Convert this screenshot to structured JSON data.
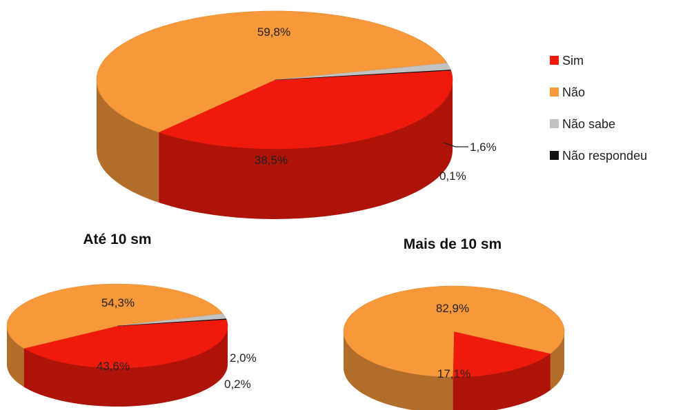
{
  "colors": {
    "Sim": "#f01a0c",
    "Não": "#f7983a",
    "Não sabe": "#c2c2c2",
    "Não respondeu": "#111111"
  },
  "legend": {
    "placement": "right",
    "items": [
      "Sim",
      "Não",
      "Não sabe",
      "Não respondeu"
    ]
  },
  "chart_data": [
    {
      "type": "pie",
      "title": "",
      "categories": [
        "Sim",
        "Não",
        "Não sabe",
        "Não respondeu"
      ],
      "values": [
        38.5,
        59.8,
        1.6,
        0.1
      ],
      "labels": [
        "38,5%",
        "59,8%",
        "1,6%",
        "0,1%"
      ]
    },
    {
      "type": "pie",
      "title": "Até  10 sm",
      "categories": [
        "Sim",
        "Não",
        "Não sabe",
        "Não respondeu"
      ],
      "values": [
        43.6,
        54.3,
        2.0,
        0.2
      ],
      "labels": [
        "43,6%",
        "54,3%",
        "2,0%",
        "0,2%"
      ]
    },
    {
      "type": "pie",
      "title": "Mais de 10 sm",
      "categories": [
        "Sim",
        "Não"
      ],
      "values": [
        17.1,
        82.9
      ],
      "labels": [
        "17,1%",
        "82,9%"
      ]
    }
  ]
}
